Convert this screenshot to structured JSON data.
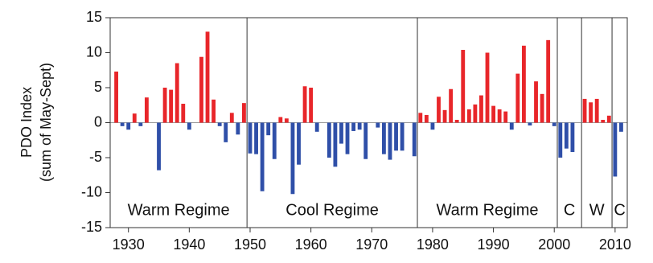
{
  "chart_data": {
    "type": "bar",
    "ylabel": [
      "PDO Index",
      "(sum of May-Sept)"
    ],
    "x": [
      1928,
      1929,
      1930,
      1931,
      1932,
      1933,
      1934,
      1935,
      1936,
      1937,
      1938,
      1939,
      1940,
      1941,
      1942,
      1943,
      1944,
      1945,
      1946,
      1947,
      1948,
      1949,
      1950,
      1951,
      1952,
      1953,
      1954,
      1955,
      1956,
      1957,
      1958,
      1959,
      1960,
      1961,
      1962,
      1963,
      1964,
      1965,
      1966,
      1967,
      1968,
      1969,
      1970,
      1971,
      1972,
      1973,
      1974,
      1975,
      1976,
      1977,
      1978,
      1979,
      1980,
      1981,
      1982,
      1983,
      1984,
      1985,
      1986,
      1987,
      1988,
      1989,
      1990,
      1991,
      1992,
      1993,
      1994,
      1995,
      1996,
      1997,
      1998,
      1999,
      2000,
      2001,
      2002,
      2003,
      2004,
      2005,
      2006,
      2007,
      2008,
      2009,
      2010,
      2011
    ],
    "values": [
      7.3,
      -0.5,
      -1,
      1.3,
      -0.5,
      3.6,
      0,
      -6.8,
      5,
      4.7,
      8.5,
      2.7,
      -1,
      0,
      9.4,
      13,
      3.3,
      -0.5,
      -2.8,
      1.4,
      -1.7,
      2.8,
      -4.4,
      -4.5,
      -9.8,
      -1.8,
      -5.2,
      0.8,
      0.6,
      -10.2,
      -6,
      5.2,
      5,
      -1.3,
      0,
      -5,
      -6.3,
      -3,
      -4.5,
      -1.2,
      -1,
      -5.2,
      0,
      -0.7,
      -4.5,
      -5.3,
      -4,
      -4,
      0,
      -4.8,
      1.4,
      1.1,
      -1,
      3.7,
      1.8,
      4.8,
      0.4,
      10.4,
      1.9,
      2.6,
      3.9,
      10,
      2.4,
      1.9,
      1.6,
      -1,
      7,
      11,
      -0.4,
      5.9,
      4.1,
      11.8,
      -0.5,
      -5,
      -3.7,
      -4.2,
      0,
      3.4,
      2.9,
      3.4,
      0.4,
      1,
      -7.7,
      -1.3
    ],
    "positive_color": "#e8262a",
    "negative_color": "#2f4fa8",
    "xlim": [
      1927,
      2012
    ],
    "xticks": [
      1930,
      1940,
      1950,
      1960,
      1970,
      1980,
      1990,
      2000,
      2010
    ],
    "ylim": [
      -15,
      15
    ],
    "yticks": [
      -15,
      -10,
      -5,
      0,
      5,
      10,
      15
    ],
    "regimes": [
      {
        "label": "Warm Regime",
        "start": 1927,
        "end": 1949.5
      },
      {
        "label": "Cool Regime",
        "start": 1949.5,
        "end": 1977.5
      },
      {
        "label": "Warm Regime",
        "start": 1977.5,
        "end": 2000.5
      },
      {
        "label": "C",
        "start": 2000.5,
        "end": 2004.5
      },
      {
        "label": "W",
        "start": 2004.5,
        "end": 2009.5
      },
      {
        "label": "C",
        "start": 2009.5,
        "end": 2012
      }
    ]
  }
}
